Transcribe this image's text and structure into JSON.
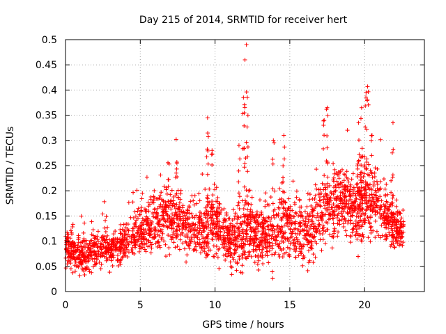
{
  "chart_data": {
    "type": "scatter",
    "title": "Day 215 of 2014, SRMTID for receiver hert",
    "xlabel": "GPS time / hours",
    "ylabel": "SRMTID / TECUs",
    "xlim": [
      0,
      24
    ],
    "ylim": [
      0,
      0.5
    ],
    "xticks": [
      0,
      5,
      10,
      15,
      20
    ],
    "yticks": [
      0,
      0.05,
      0.1,
      0.15,
      0.2,
      0.25,
      0.3,
      0.35,
      0.4,
      0.45,
      0.5
    ],
    "xtick_labels": [
      "0",
      "5",
      "10",
      "15",
      "20"
    ],
    "ytick_labels": [
      "0",
      "0.05",
      "0.1",
      "0.15",
      "0.2",
      "0.25",
      "0.3",
      "0.35",
      "0.4",
      "0.45",
      "0.5"
    ],
    "grid": true,
    "marker": "+",
    "color": "#ff0000",
    "series": [
      {
        "name": "SRMTID",
        "envelope": {
          "x": [
            0.0,
            0.5,
            1.0,
            1.5,
            2.0,
            2.5,
            3.0,
            3.5,
            4.0,
            4.5,
            5.0,
            5.5,
            6.0,
            6.5,
            7.0,
            7.5,
            8.0,
            8.5,
            9.0,
            9.5,
            10.0,
            10.5,
            11.0,
            11.5,
            12.0,
            12.5,
            13.0,
            13.5,
            14.0,
            14.5,
            15.0,
            15.5,
            16.0,
            16.5,
            17.0,
            17.5,
            18.0,
            18.5,
            19.0,
            19.5,
            20.0,
            20.5,
            21.0,
            21.5,
            22.0,
            22.5
          ],
          "base": [
            0.09,
            0.08,
            0.07,
            0.075,
            0.08,
            0.085,
            0.08,
            0.09,
            0.1,
            0.11,
            0.12,
            0.13,
            0.14,
            0.15,
            0.15,
            0.14,
            0.13,
            0.12,
            0.12,
            0.13,
            0.13,
            0.12,
            0.1,
            0.1,
            0.11,
            0.12,
            0.11,
            0.11,
            0.12,
            0.13,
            0.13,
            0.12,
            0.12,
            0.13,
            0.15,
            0.17,
            0.18,
            0.18,
            0.17,
            0.16,
            0.18,
            0.19,
            0.17,
            0.15,
            0.13,
            0.12
          ],
          "spread": [
            0.03,
            0.025,
            0.025,
            0.025,
            0.025,
            0.025,
            0.025,
            0.025,
            0.025,
            0.03,
            0.03,
            0.035,
            0.04,
            0.04,
            0.045,
            0.04,
            0.035,
            0.035,
            0.04,
            0.05,
            0.05,
            0.04,
            0.04,
            0.04,
            0.045,
            0.045,
            0.04,
            0.04,
            0.045,
            0.045,
            0.045,
            0.045,
            0.045,
            0.045,
            0.05,
            0.05,
            0.05,
            0.05,
            0.05,
            0.05,
            0.055,
            0.055,
            0.05,
            0.04,
            0.035,
            0.03
          ]
        },
        "peaks": [
          {
            "x": 7.4,
            "y": 0.302
          },
          {
            "x": 9.5,
            "y": 0.345
          },
          {
            "x": 9.8,
            "y": 0.28
          },
          {
            "x": 11.6,
            "y": 0.29
          },
          {
            "x": 12.1,
            "y": 0.49
          },
          {
            "x": 12.0,
            "y": 0.46
          },
          {
            "x": 11.9,
            "y": 0.385
          },
          {
            "x": 12.2,
            "y": 0.35
          },
          {
            "x": 13.9,
            "y": 0.3
          },
          {
            "x": 14.6,
            "y": 0.31
          },
          {
            "x": 17.5,
            "y": 0.365
          },
          {
            "x": 17.3,
            "y": 0.34
          },
          {
            "x": 19.6,
            "y": 0.335
          },
          {
            "x": 19.8,
            "y": 0.365
          },
          {
            "x": 20.2,
            "y": 0.407
          },
          {
            "x": 20.1,
            "y": 0.395
          },
          {
            "x": 20.5,
            "y": 0.31
          },
          {
            "x": 21.9,
            "y": 0.335
          }
        ],
        "n_points": 2600,
        "x_range": [
          0,
          22.6
        ]
      }
    ]
  }
}
